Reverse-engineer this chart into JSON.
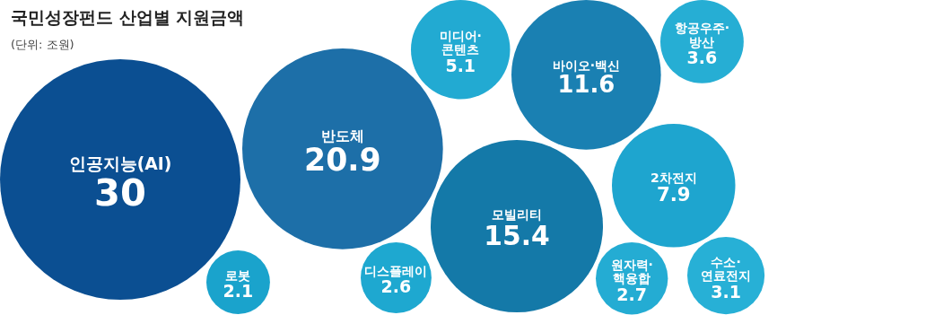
{
  "chart_data": {
    "type": "other",
    "title": "국민성장펀드 산업별 지원금액",
    "subtitle": "(단위: 조원)",
    "categories": [
      "인공지능(AI)",
      "로봇",
      "반도체",
      "디스플레이",
      "미디어·\n콘텐츠",
      "모빌리티",
      "바이오·백신",
      "원자력·\n핵융합",
      "2차전지",
      "항공우주·\n방산",
      "수소·\n연료전지"
    ],
    "values": [
      30,
      2.1,
      20.9,
      2.6,
      5.1,
      15.4,
      11.6,
      2.7,
      7.9,
      3.6,
      3.1
    ],
    "colors": [
      "#0b4f92",
      "#1aa3cc",
      "#1d6fa8",
      "#1ea8d0",
      "#22aad2",
      "#1479a8",
      "#1a80b2",
      "#24acd3",
      "#1ea5cf",
      "#26aed4",
      "#27b0d6"
    ],
    "data_labels": true
  }
}
